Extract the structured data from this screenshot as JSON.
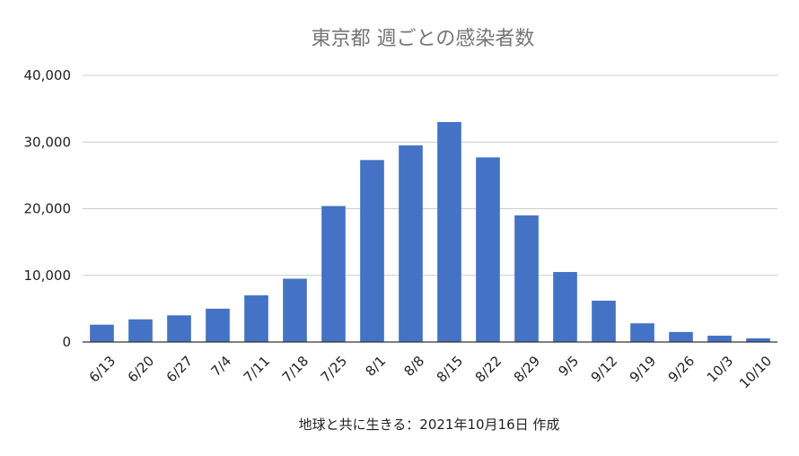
{
  "chart_data": {
    "type": "bar",
    "title": "東京都 週ごとの感染者数",
    "xlabel": "地球と共に生きる：2021年10月16日 作成",
    "ylabel": "",
    "ylim": [
      0,
      40000
    ],
    "yticks": [
      "0",
      "10,000",
      "20,000",
      "30,000",
      "40,000"
    ],
    "grid": true,
    "bar_color": "#4472c4",
    "categories": [
      "6/13",
      "6/20",
      "6/27",
      "7/4",
      "7/11",
      "7/18",
      "7/25",
      "8/1",
      "8/8",
      "8/15",
      "8/22",
      "8/29",
      "9/5",
      "9/12",
      "9/19",
      "9/26",
      "10/3",
      "10/10"
    ],
    "values": [
      2600,
      3400,
      4000,
      5000,
      7000,
      9500,
      20400,
      27300,
      29500,
      33000,
      27700,
      19000,
      10500,
      6200,
      2800,
      1500,
      950,
      550
    ]
  }
}
